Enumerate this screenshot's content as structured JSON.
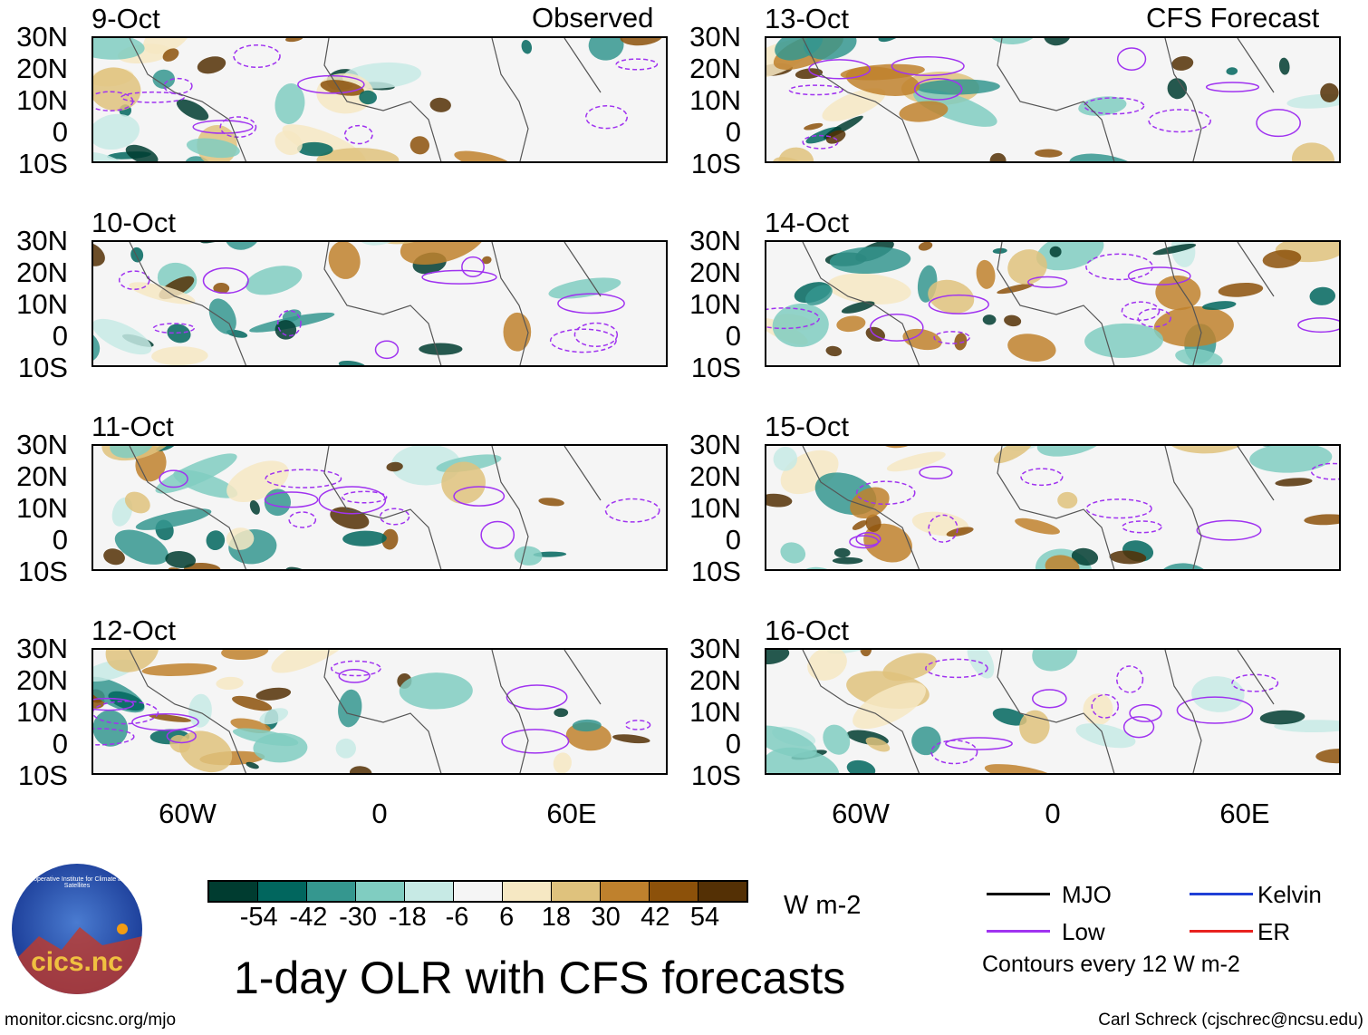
{
  "header": {
    "left_label": "Observed",
    "right_label": "CFS Forecast"
  },
  "panels_observed": [
    {
      "date": "9-Oct"
    },
    {
      "date": "10-Oct"
    },
    {
      "date": "11-Oct"
    },
    {
      "date": "12-Oct"
    }
  ],
  "panels_forecast": [
    {
      "date": "13-Oct"
    },
    {
      "date": "14-Oct"
    },
    {
      "date": "15-Oct"
    },
    {
      "date": "16-Oct"
    }
  ],
  "lat_ticks": [
    "30N",
    "20N",
    "10N",
    "0",
    "10S"
  ],
  "lon_ticks": [
    "60W",
    "0",
    "60E"
  ],
  "colorbar": {
    "labels": [
      "-54",
      "-42",
      "-30",
      "-18",
      "-6",
      "6",
      "18",
      "30",
      "42",
      "54"
    ],
    "colors": [
      "#003c30",
      "#01665e",
      "#35978f",
      "#80cdc1",
      "#c7eae5",
      "#f5f5f5",
      "#f6e8c3",
      "#dfc27d",
      "#bf812d",
      "#8c510a",
      "#543005"
    ],
    "units": "W m-2"
  },
  "legend": {
    "items": [
      {
        "label": "MJO",
        "color": "#000000"
      },
      {
        "label": "Kelvin",
        "color": "#1f3fd6"
      },
      {
        "label": "Low",
        "color": "#a033f0"
      },
      {
        "label": "ER",
        "color": "#e8221f"
      }
    ],
    "note": "Contours every 12 W m-2"
  },
  "title": "1-day OLR with CFS forecasts",
  "logo_text": "cics.nc",
  "logo_ring_text": "Cooperative Institute for Climate and Satellites",
  "footer_left": "monitor.cicsnc.org/mjo",
  "footer_right": "Carl Schreck (cjschrec@ncsu.edu)"
}
